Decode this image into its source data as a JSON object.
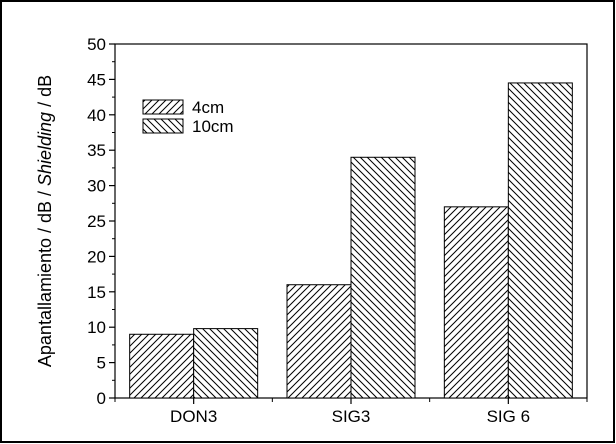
{
  "chart_data": {
    "type": "bar",
    "categories": [
      "DON3",
      "SIG3",
      "SIG 6"
    ],
    "series": [
      {
        "name": "4cm",
        "values": [
          9,
          16,
          27
        ],
        "pattern": "hatch-forward"
      },
      {
        "name": "10cm",
        "values": [
          9.8,
          34,
          44.5
        ],
        "pattern": "hatch-backward"
      }
    ],
    "ylabel": {
      "part1": "Apantallamiento / dB / ",
      "part2": "Shielding",
      "part3": " / dB"
    },
    "xlabel": "",
    "ylim": [
      0,
      50
    ],
    "yticks": [
      "0",
      "5",
      "10",
      "15",
      "20",
      "25",
      "30",
      "35",
      "40",
      "45",
      "50"
    ],
    "grid": false,
    "legend_position": "top-left",
    "colors": {
      "stroke": "#000000",
      "background": "#ffffff"
    }
  }
}
